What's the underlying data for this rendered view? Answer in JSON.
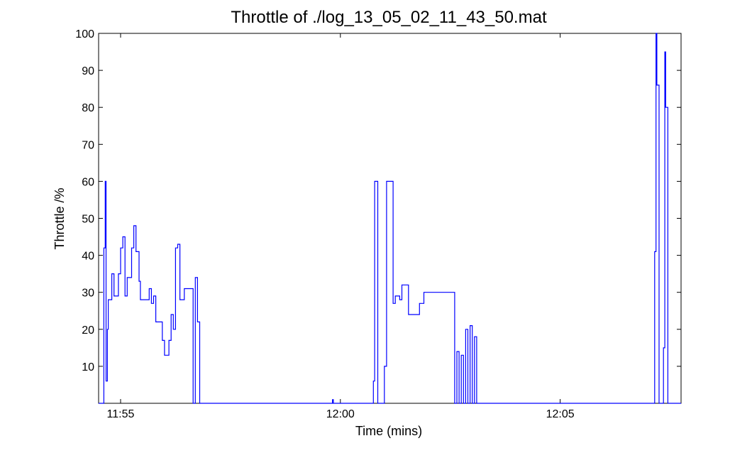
{
  "chart_data": {
    "type": "line",
    "title": "Throttle of ./log_13_05_02_11_43_50.mat",
    "xlabel": "Time (mins)",
    "ylabel": "Throttle /%",
    "xlim": [
      "11:54.5",
      "12:07.75"
    ],
    "ylim": [
      0,
      100
    ],
    "x_ticks": [
      "11:55",
      "12:00",
      "12:05"
    ],
    "y_ticks": [
      10,
      20,
      30,
      40,
      50,
      60,
      70,
      80,
      90,
      100
    ],
    "grid": false,
    "legend": "none",
    "series": [
      {
        "color": "#0000ff",
        "step": true,
        "points": [
          [
            "11:54.5",
            0
          ],
          [
            "11:54.6",
            0
          ],
          [
            "11:54.62",
            42
          ],
          [
            "11:54.65",
            60
          ],
          [
            "11:54.67",
            6
          ],
          [
            "11:54.7",
            20
          ],
          [
            "11:54.72",
            28
          ],
          [
            "11:54.8",
            35
          ],
          [
            "11:54.85",
            29
          ],
          [
            "11:54.95",
            35
          ],
          [
            "11:55.0",
            42
          ],
          [
            "11:55.05",
            45
          ],
          [
            "11:55.1",
            29
          ],
          [
            "11:55.15",
            34
          ],
          [
            "11:55.25",
            42
          ],
          [
            "11:55.3",
            48
          ],
          [
            "11:55.35",
            41
          ],
          [
            "11:55.42",
            33
          ],
          [
            "11:55.45",
            28
          ],
          [
            "11:55.65",
            31
          ],
          [
            "11:55.7",
            27
          ],
          [
            "11:55.75",
            29
          ],
          [
            "11:55.8",
            22
          ],
          [
            "11:55.95",
            17
          ],
          [
            "11:56.0",
            13
          ],
          [
            "11:56.1",
            17
          ],
          [
            "11:56.15",
            24
          ],
          [
            "11:56.2",
            20
          ],
          [
            "11:56.25",
            42
          ],
          [
            "11:56.3",
            43
          ],
          [
            "11:56.35",
            28
          ],
          [
            "11:56.45",
            31
          ],
          [
            "11:56.6",
            31
          ],
          [
            "11:56.65",
            0
          ],
          [
            "11:56.7",
            34
          ],
          [
            "11:56.75",
            22
          ],
          [
            "11:56.8",
            0
          ],
          [
            "11:59.8",
            0
          ],
          [
            "11:59.82",
            1
          ],
          [
            "11:59.84",
            0
          ],
          [
            "12:00.7",
            0
          ],
          [
            "12:00.75",
            6
          ],
          [
            "12:00.78",
            60
          ],
          [
            "12:00.85",
            0
          ],
          [
            "12:01.0",
            10
          ],
          [
            "12:01.05",
            60
          ],
          [
            "12:01.15",
            60
          ],
          [
            "12:01.2",
            27
          ],
          [
            "12:01.25",
            29
          ],
          [
            "12:01.35",
            28
          ],
          [
            "12:01.4",
            32
          ],
          [
            "12:01.55",
            24
          ],
          [
            "12:01.8",
            27
          ],
          [
            "12:01.9",
            30
          ],
          [
            "12:02.55",
            30
          ],
          [
            "12:02.6",
            0
          ],
          [
            "12:02.65",
            14
          ],
          [
            "12:02.7",
            0
          ],
          [
            "12:02.75",
            13
          ],
          [
            "12:02.8",
            0
          ],
          [
            "12:02.85",
            20
          ],
          [
            "12:02.9",
            0
          ],
          [
            "12:02.95",
            21
          ],
          [
            "12:03.0",
            0
          ],
          [
            "12:03.05",
            18
          ],
          [
            "12:03.1",
            0
          ],
          [
            "12:07.1",
            0
          ],
          [
            "12:07.15",
            41
          ],
          [
            "12:07.18",
            100
          ],
          [
            "12:07.2",
            86
          ],
          [
            "12:07.25",
            0
          ],
          [
            "12:07.35",
            15
          ],
          [
            "12:07.38",
            95
          ],
          [
            "12:07.4",
            80
          ],
          [
            "12:07.45",
            0
          ],
          [
            "12:07.75",
            0
          ]
        ]
      }
    ]
  }
}
